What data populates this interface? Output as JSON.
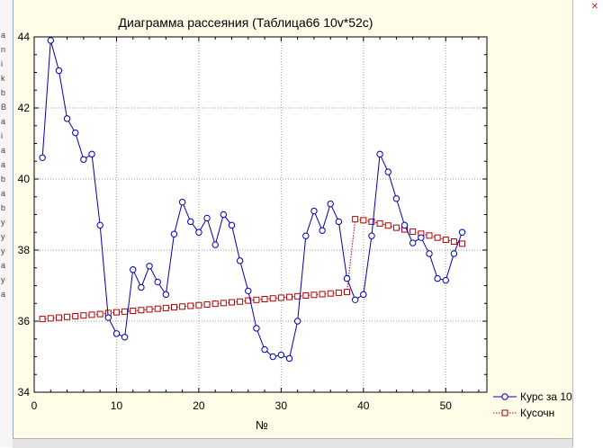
{
  "left_strip_glyphs": [
    "a",
    "n",
    "i",
    "k",
    "b",
    "B",
    "a",
    "i",
    "a",
    "a",
    "b",
    "a",
    "b",
    "y",
    "y",
    "y",
    "a",
    "y",
    "a"
  ],
  "colors": {
    "series1": "#0000b0",
    "series2": "#b00000",
    "plot_background": "#ffffff",
    "window_background": "#fffde8",
    "grid": "#9a9a9a"
  },
  "chart_data": {
    "type": "line",
    "title": "Диаграмма рассеяния (Таблица66 10v*52c)",
    "xlabel": "№",
    "ylabel": "",
    "xlim": [
      0,
      55
    ],
    "ylim": [
      34,
      44
    ],
    "xticks": [
      0,
      10,
      20,
      30,
      40,
      50
    ],
    "yticks": [
      34,
      36,
      38,
      40,
      42,
      44
    ],
    "grid": true,
    "legend_position": "bottom-right",
    "series": [
      {
        "name": "Курс за 10",
        "style": "line-circle",
        "color": "#0000b0",
        "x": [
          1,
          2,
          3,
          4,
          5,
          6,
          7,
          8,
          9,
          10,
          11,
          12,
          13,
          14,
          15,
          16,
          17,
          18,
          19,
          20,
          21,
          22,
          23,
          24,
          25,
          26,
          27,
          28,
          29,
          30,
          31,
          32,
          33,
          34,
          35,
          36,
          37,
          38,
          39,
          40,
          41,
          42,
          43,
          44,
          45,
          46,
          47,
          48,
          49,
          50,
          51,
          52
        ],
        "y": [
          40.6,
          43.9,
          43.05,
          41.7,
          41.3,
          40.55,
          40.7,
          38.7,
          36.1,
          35.65,
          35.55,
          37.45,
          36.95,
          37.55,
          37.1,
          36.75,
          38.45,
          39.35,
          38.8,
          38.5,
          38.9,
          38.15,
          39.0,
          38.7,
          37.7,
          36.85,
          35.8,
          35.2,
          35.0,
          35.05,
          34.95,
          36.0,
          38.4,
          39.1,
          38.55,
          39.3,
          38.8,
          37.2,
          36.6,
          36.75,
          38.4,
          40.7,
          40.2,
          39.45,
          38.7,
          38.2,
          38.35,
          37.9,
          37.2,
          37.15,
          37.9,
          38.5
        ]
      },
      {
        "name": "Кусочн",
        "style": "dotted-square",
        "color": "#b00000",
        "segments": [
          {
            "x": [
              1,
              2,
              3,
              4,
              5,
              6,
              7,
              8,
              9,
              10,
              11,
              12,
              13,
              14,
              15,
              16,
              17,
              18,
              19,
              20,
              21,
              22,
              23,
              24,
              25,
              26,
              27,
              28,
              29,
              30,
              31,
              32,
              33,
              34,
              35,
              36,
              37,
              38
            ],
            "y": [
              36.06,
              36.08,
              36.1,
              36.12,
              36.14,
              36.16,
              36.18,
              36.2,
              36.23,
              36.25,
              36.27,
              36.29,
              36.31,
              36.33,
              36.35,
              36.37,
              36.39,
              36.41,
              36.43,
              36.45,
              36.47,
              36.49,
              36.51,
              36.53,
              36.55,
              36.58,
              36.6,
              36.62,
              36.64,
              36.66,
              36.68,
              36.7,
              36.72,
              36.74,
              36.76,
              36.78,
              36.8,
              36.82
            ]
          },
          {
            "x": [
              39,
              40,
              41,
              42,
              43,
              44,
              45,
              46,
              47,
              48,
              49,
              50,
              51,
              52
            ],
            "y": [
              38.87,
              38.84,
              38.8,
              38.75,
              38.69,
              38.63,
              38.58,
              38.52,
              38.46,
              38.41,
              38.35,
              38.29,
              38.24,
              38.18
            ]
          }
        ]
      }
    ]
  }
}
